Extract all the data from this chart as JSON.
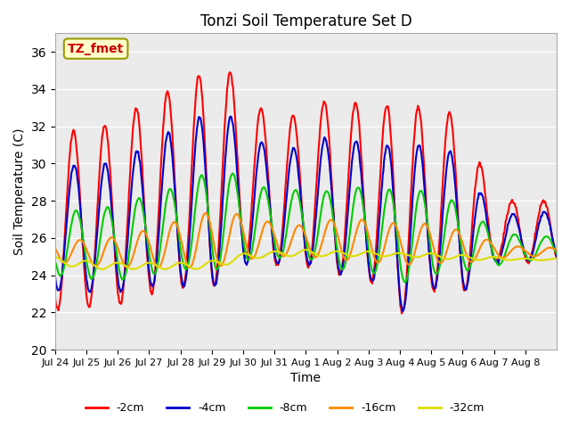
{
  "title": "Tonzi Soil Temperature Set D",
  "xlabel": "Time",
  "ylabel": "Soil Temperature (C)",
  "ylim": [
    20,
    37
  ],
  "yticks": [
    20,
    22,
    24,
    26,
    28,
    30,
    32,
    34,
    36
  ],
  "background_color": "#ebebeb",
  "annotation_text": "TZ_fmet",
  "annotation_bg": "#ffffcc",
  "annotation_border": "#999900",
  "annotation_color": "#cc0000",
  "legend_labels": [
    "-2cm",
    "-4cm",
    "-8cm",
    "-16cm",
    "-32cm"
  ],
  "line_colors": [
    "#ff0000",
    "#0000cc",
    "#00cc00",
    "#ff8800",
    "#dddd00"
  ],
  "line_widths": [
    1.5,
    1.5,
    1.5,
    1.5,
    1.5
  ],
  "n_days": 16,
  "points_per_day": 48,
  "tick_labels": [
    "Jul 24",
    "Jul 25",
    "Jul 26",
    "Jul 27",
    "Jul 28",
    "Jul 29",
    "Jul 30",
    "Jul 31",
    "Aug 1",
    "Aug 2",
    "Aug 3",
    "Aug 4",
    "Aug 5",
    "Aug 6",
    "Aug 7",
    "Aug 8"
  ],
  "figsize": [
    6.4,
    4.8
  ],
  "dpi": 100
}
